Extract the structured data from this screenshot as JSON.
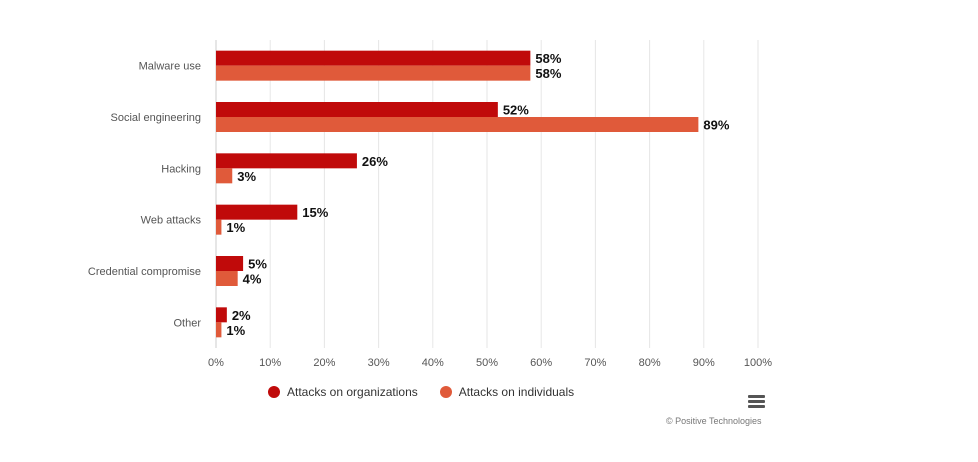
{
  "chart_data": {
    "type": "bar",
    "orientation": "horizontal",
    "categories": [
      "Malware use",
      "Social engineering",
      "Hacking",
      "Web attacks",
      "Credential compromise",
      "Other"
    ],
    "series": [
      {
        "name": "Attacks on organizations",
        "color": "#c00a0a",
        "values": [
          58,
          52,
          26,
          15,
          5,
          2
        ]
      },
      {
        "name": "Attacks on individuals",
        "color": "#e05a3a",
        "values": [
          58,
          89,
          3,
          1,
          4,
          1
        ]
      }
    ],
    "xlim": [
      0,
      100
    ],
    "xticks": [
      0,
      10,
      20,
      30,
      40,
      50,
      60,
      70,
      80,
      90,
      100
    ],
    "tick_suffix": "%",
    "value_suffix": "%",
    "grid": true,
    "legend_position": "bottom"
  },
  "credit": "© Positive Technologies",
  "menu_icon": "hamburger-menu-icon"
}
